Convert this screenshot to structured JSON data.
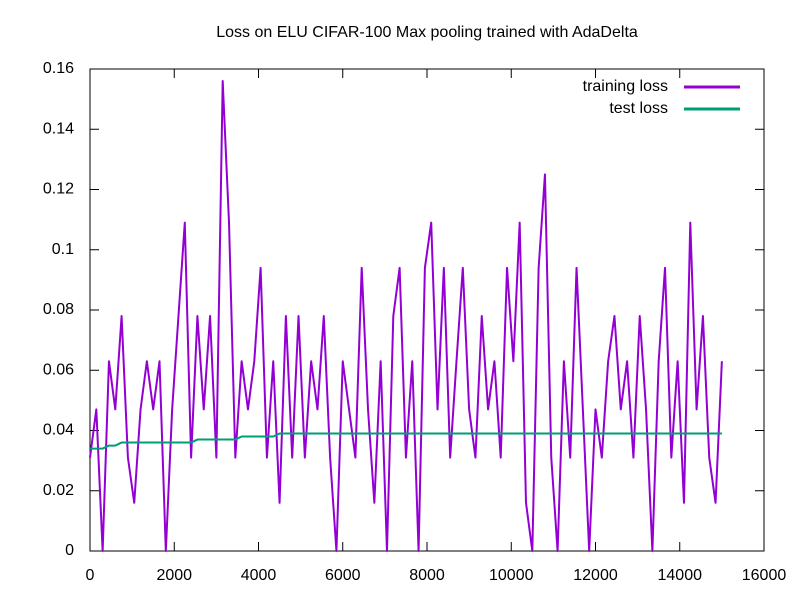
{
  "chart_data": {
    "type": "line",
    "title": "Loss on ELU CIFAR-100 Max pooling trained with AdaDelta",
    "x": [
      0,
      150,
      300,
      450,
      600,
      750,
      900,
      1050,
      1200,
      1350,
      1500,
      1650,
      1800,
      1950,
      2100,
      2250,
      2400,
      2550,
      2700,
      2850,
      3000,
      3150,
      3300,
      3450,
      3600,
      3750,
      3900,
      4050,
      4200,
      4350,
      4500,
      4650,
      4800,
      4950,
      5100,
      5250,
      5400,
      5550,
      5700,
      5850,
      6000,
      6150,
      6300,
      6450,
      6600,
      6750,
      6900,
      7050,
      7200,
      7350,
      7500,
      7650,
      7800,
      7950,
      8100,
      8250,
      8400,
      8550,
      8700,
      8850,
      9000,
      9150,
      9300,
      9450,
      9600,
      9750,
      9900,
      10050,
      10200,
      10350,
      10500,
      10650,
      10800,
      10950,
      11100,
      11250,
      11400,
      11550,
      11700,
      11850,
      12000,
      12150,
      12300,
      12450,
      12600,
      12750,
      12900,
      13050,
      13200,
      13350,
      13500,
      13650,
      13800,
      13950,
      14100,
      14250,
      14400,
      14550,
      14700,
      14850,
      15000
    ],
    "series": [
      {
        "name": "training loss",
        "color": "#9400d3",
        "values": [
          0.031,
          0.047,
          0.0,
          0.063,
          0.047,
          0.078,
          0.031,
          0.016,
          0.047,
          0.063,
          0.047,
          0.063,
          0.0,
          0.047,
          0.078,
          0.109,
          0.031,
          0.078,
          0.047,
          0.078,
          0.031,
          0.156,
          0.109,
          0.031,
          0.063,
          0.047,
          0.063,
          0.094,
          0.031,
          0.063,
          0.016,
          0.078,
          0.031,
          0.078,
          0.031,
          0.063,
          0.047,
          0.078,
          0.031,
          0.0,
          0.063,
          0.047,
          0.031,
          0.094,
          0.047,
          0.016,
          0.063,
          0.0,
          0.078,
          0.094,
          0.031,
          0.063,
          0.0,
          0.094,
          0.109,
          0.047,
          0.094,
          0.031,
          0.063,
          0.094,
          0.047,
          0.031,
          0.078,
          0.047,
          0.063,
          0.031,
          0.094,
          0.063,
          0.109,
          0.016,
          0.0,
          0.094,
          0.125,
          0.031,
          0.0,
          0.063,
          0.031,
          0.094,
          0.047,
          0.0,
          0.047,
          0.031,
          0.063,
          0.078,
          0.047,
          0.063,
          0.031,
          0.078,
          0.047,
          0.0,
          0.063,
          0.094,
          0.031,
          0.063,
          0.016,
          0.109,
          0.047,
          0.078,
          0.031,
          0.016,
          0.063
        ]
      },
      {
        "name": "test loss",
        "color": "#009e73",
        "values": [
          0.034,
          0.034,
          0.034,
          0.035,
          0.035,
          0.036,
          0.036,
          0.036,
          0.036,
          0.036,
          0.036,
          0.036,
          0.036,
          0.036,
          0.036,
          0.036,
          0.036,
          0.037,
          0.037,
          0.037,
          0.037,
          0.037,
          0.037,
          0.037,
          0.038,
          0.038,
          0.038,
          0.038,
          0.038,
          0.038,
          0.039,
          0.039,
          0.039,
          0.039,
          0.039,
          0.039,
          0.039,
          0.039,
          0.039,
          0.039,
          0.039,
          0.039,
          0.039,
          0.039,
          0.039,
          0.039,
          0.039,
          0.039,
          0.039,
          0.039,
          0.039,
          0.039,
          0.039,
          0.039,
          0.039,
          0.039,
          0.039,
          0.039,
          0.039,
          0.039,
          0.039,
          0.039,
          0.039,
          0.039,
          0.039,
          0.039,
          0.039,
          0.039,
          0.039,
          0.039,
          0.039,
          0.039,
          0.039,
          0.039,
          0.039,
          0.039,
          0.039,
          0.039,
          0.039,
          0.039,
          0.039,
          0.039,
          0.039,
          0.039,
          0.039,
          0.039,
          0.039,
          0.039,
          0.039,
          0.039,
          0.039,
          0.039,
          0.039,
          0.039,
          0.039,
          0.039,
          0.039,
          0.039,
          0.039,
          0.039,
          0.039
        ]
      }
    ],
    "xlim": [
      0,
      16000
    ],
    "xticks": [
      0,
      2000,
      4000,
      6000,
      8000,
      10000,
      12000,
      14000,
      16000
    ],
    "ylim": [
      0,
      0.16
    ],
    "yticks": [
      0,
      0.02,
      0.04,
      0.06,
      0.08,
      0.1,
      0.12,
      0.14,
      0.16
    ],
    "grid": false,
    "legend": "top-right"
  }
}
